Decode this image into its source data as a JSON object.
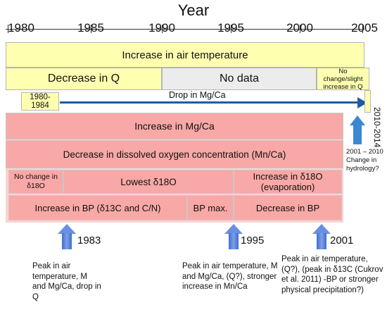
{
  "axis": {
    "title": "Year",
    "ticks": [
      "1980",
      "1985",
      "1990",
      "1995",
      "2000",
      "2005"
    ]
  },
  "bands": {
    "air_temp": "Increase in air temperature",
    "decrease_q": "Decrease in Q",
    "no_data": "No data",
    "no_change_q": "No change/slight increase in Q",
    "period_1980": "1980-1984",
    "drop_mgca": "Drop in Mg/Ca",
    "period_2010": "2010-2014",
    "increase_mgca": "Increase in Mg/Ca",
    "decrease_oxygen": "Decrease in dissolved oxygen concentration (Mn/Ca)",
    "no_change_d18o": "No change in δ18O",
    "lowest_d18o": "Lowest δ18O",
    "increase_d18o": "Increase in δ18O (evaporation)",
    "increase_bp": "Increase in BP (δ13C and C/N)",
    "bp_max": "BP max.",
    "decrease_bp": "Decrease in BP"
  },
  "side_note": "2001 – 2010 Change in hydrology?",
  "events": [
    {
      "year": "1983",
      "note": "Peak in air temperature, M and Mg/Ca, drop in Q"
    },
    {
      "year": "1995",
      "note": "Peak in air temperature, M and Mg/Ca, (Q?), stronger increase in Mn/Ca"
    },
    {
      "year": "2001",
      "note": "Peak in air temperature, (Q?), (peak in δ13C (Cukrov et al. 2011) -BP or stronger physical precipitation?)"
    }
  ],
  "colors": {
    "yellow": "#ffffb0",
    "pink": "#f8a8a6",
    "gray": "#ececec",
    "blue_arrow": "#1f5aa6"
  }
}
